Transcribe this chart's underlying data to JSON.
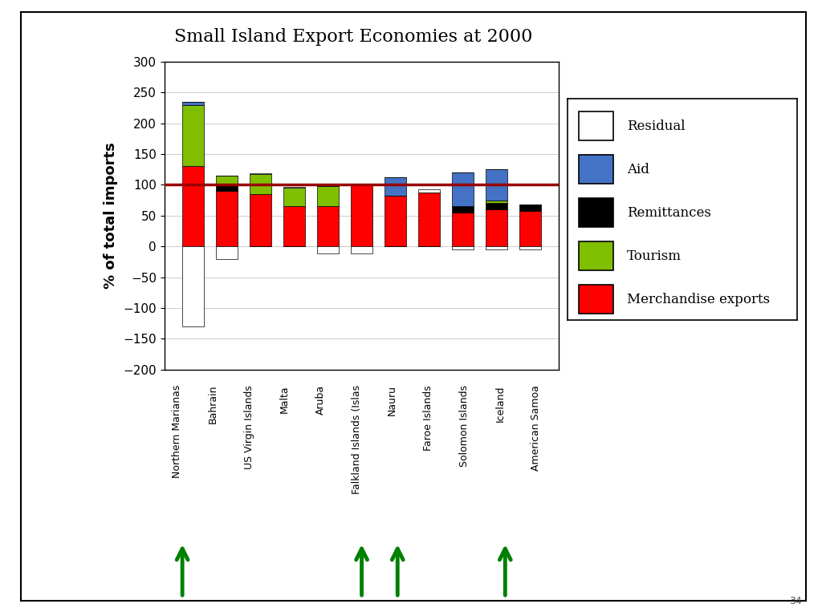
{
  "title": "Small Island Export Economies at 2000",
  "ylabel": "% of total imports",
  "categories": [
    "Northern Marianas",
    "Bahrain",
    "US Virgin Islands",
    "Malta",
    "Aruba",
    "Falkland Islands (Islas",
    "Nauru",
    "Faroe Islands",
    "Solomon Islands",
    "Iceland",
    "American Samoa"
  ],
  "merchandise_exports": [
    130,
    90,
    85,
    65,
    65,
    100,
    82,
    88,
    55,
    60,
    58
  ],
  "tourism": [
    100,
    15,
    32,
    30,
    33,
    0,
    0,
    0,
    0,
    5,
    0
  ],
  "aid": [
    5,
    0,
    0,
    0,
    0,
    0,
    30,
    0,
    55,
    50,
    0
  ],
  "remittances": [
    0,
    10,
    0,
    0,
    0,
    0,
    0,
    0,
    10,
    10,
    10
  ],
  "residual": [
    -130,
    -20,
    2,
    2,
    -12,
    -12,
    0,
    5,
    -5,
    -5,
    -5
  ],
  "colors": {
    "merchandise_exports": "#FF0000",
    "tourism": "#7FBF00",
    "aid": "#4472C4",
    "remittances": "#000000",
    "residual": "#FFFFFF"
  },
  "arrow_indices": [
    0,
    5,
    6,
    9
  ],
  "arrow_color": "#008000",
  "ylim": [
    -200,
    300
  ],
  "yticks": [
    -200,
    -150,
    -100,
    -50,
    0,
    50,
    100,
    150,
    200,
    250,
    300
  ],
  "hline_y": 100,
  "hline_color": "#990000",
  "background_color": "#FFFFFF",
  "page_bg": "#FFFFFF",
  "outer_bg": "#FFFFFF",
  "page_number": "34",
  "legend_items": [
    {
      "label": "Residual",
      "facecolor": "#FFFFFF",
      "edgecolor": "#000000"
    },
    {
      "label": "Aid",
      "facecolor": "#4472C4",
      "edgecolor": "#000000"
    },
    {
      "label": "Remittances",
      "facecolor": "#000000",
      "edgecolor": "#000000"
    },
    {
      "label": "Tourism",
      "facecolor": "#7FBF00",
      "edgecolor": "#000000"
    },
    {
      "label": "Merchandise exports",
      "facecolor": "#FF0000",
      "edgecolor": "#000000"
    }
  ]
}
